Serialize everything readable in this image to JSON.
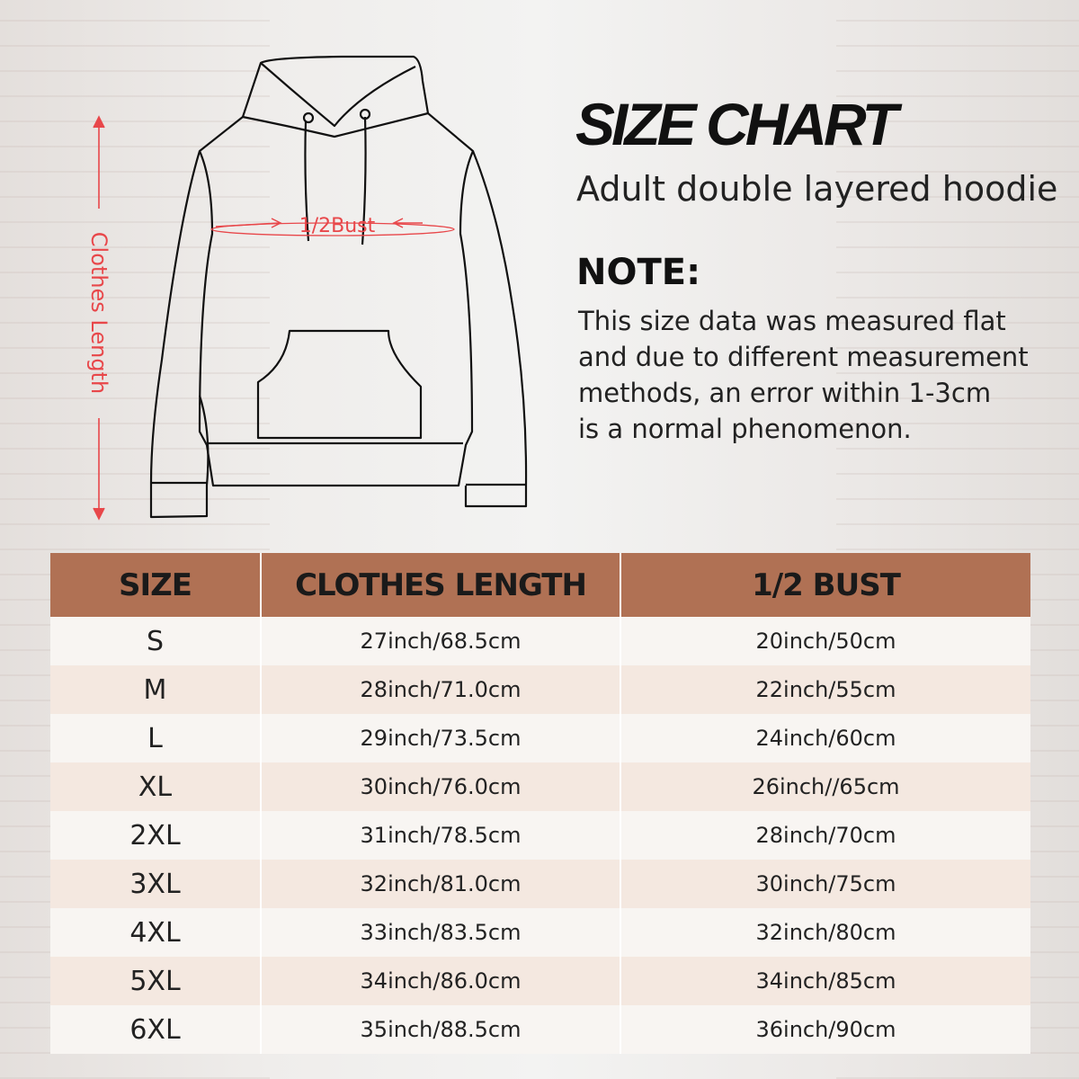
{
  "title": "SIZE CHART",
  "subtitle": "Adult double layered hoodie",
  "note": {
    "heading": "NOTE:",
    "lines": [
      "This size data was measured flat",
      "and due to different measurement",
      "methods, an error within 1-3cm",
      "is a normal phenomenon."
    ]
  },
  "diagram": {
    "bust_label": "1/2Bust",
    "length_label": "Clothes Length",
    "accent_color": "#e8474a"
  },
  "table": {
    "header_color": "#b07154",
    "headers": [
      "SIZE",
      "CLOTHES LENGTH",
      "1/2 BUST"
    ],
    "rows": [
      [
        "S",
        "27inch/68.5cm",
        "20inch/50cm"
      ],
      [
        "M",
        "28inch/71.0cm",
        "22inch/55cm"
      ],
      [
        "L",
        "29inch/73.5cm",
        "24inch/60cm"
      ],
      [
        "XL",
        "30inch/76.0cm",
        "26inch//65cm"
      ],
      [
        "2XL",
        "31inch/78.5cm",
        "28inch/70cm"
      ],
      [
        "3XL",
        "32inch/81.0cm",
        "30inch/75cm"
      ],
      [
        "4XL",
        "33inch/83.5cm",
        "32inch/80cm"
      ],
      [
        "5XL",
        "34inch/86.0cm",
        "34inch/85cm"
      ],
      [
        "6XL",
        "35inch/88.5cm",
        "36inch/90cm"
      ]
    ]
  }
}
